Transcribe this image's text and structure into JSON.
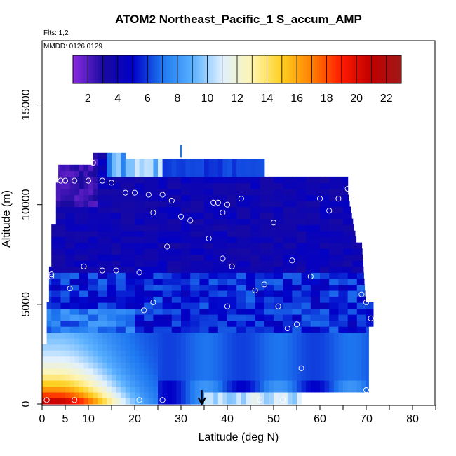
{
  "chart_data": {
    "type": "heatmap",
    "title": "ATOM2 Northeast_Pacific_1 S_accum_AMP",
    "subtitle_flights": "Flts: 1,2",
    "subtitle_dates": "MMDD: 0126,0129",
    "xlabel": "Latitude (deg N)",
    "ylabel": "Altitude (m)",
    "xlim": [
      0,
      85
    ],
    "ylim": [
      0,
      18000
    ],
    "x_ticks": [
      0,
      5,
      10,
      20,
      30,
      40,
      50,
      60,
      70,
      80
    ],
    "y_ticks": [
      0,
      5000,
      10000,
      15000
    ],
    "colorbar": {
      "range": [
        1,
        23
      ],
      "ticks": [
        2,
        4,
        6,
        8,
        10,
        12,
        14,
        16,
        18,
        20,
        22
      ],
      "colors": [
        "#8b2be2",
        "#1a0a9e",
        "#0000c8",
        "#1e78f0",
        "#5ab0ff",
        "#dff0ff",
        "#fff5b0",
        "#ffd020",
        "#ff8000",
        "#ff1a00",
        "#c00000",
        "#a01818"
      ]
    },
    "marker_arrow_latitude": 34.5,
    "observations": [
      {
        "lat": 1,
        "alt": 200
      },
      {
        "lat": 7,
        "alt": 200
      },
      {
        "lat": 21,
        "alt": 200
      },
      {
        "lat": 26,
        "alt": 200
      },
      {
        "lat": 47,
        "alt": 200
      },
      {
        "lat": 52,
        "alt": 200
      },
      {
        "lat": 70,
        "alt": 700
      },
      {
        "lat": 56,
        "alt": 1800
      },
      {
        "lat": 53,
        "alt": 3800
      },
      {
        "lat": 55,
        "alt": 4000
      },
      {
        "lat": 71,
        "alt": 4300
      },
      {
        "lat": 24,
        "alt": 5100
      },
      {
        "lat": 40,
        "alt": 4900
      },
      {
        "lat": 51,
        "alt": 4900
      },
      {
        "lat": 22,
        "alt": 4700
      },
      {
        "lat": 70,
        "alt": 5100
      },
      {
        "lat": 69,
        "alt": 5500
      },
      {
        "lat": 46,
        "alt": 5700
      },
      {
        "lat": 48,
        "alt": 6000
      },
      {
        "lat": 6,
        "alt": 5800
      },
      {
        "lat": 2,
        "alt": 6500
      },
      {
        "lat": 2,
        "alt": 6400
      },
      {
        "lat": 9,
        "alt": 6900
      },
      {
        "lat": 13,
        "alt": 6700
      },
      {
        "lat": 16,
        "alt": 6700
      },
      {
        "lat": 21,
        "alt": 6600
      },
      {
        "lat": 41,
        "alt": 6900
      },
      {
        "lat": 39,
        "alt": 7300
      },
      {
        "lat": 54,
        "alt": 7200
      },
      {
        "lat": 58,
        "alt": 6400
      },
      {
        "lat": 27,
        "alt": 7900
      },
      {
        "lat": 36,
        "alt": 8300
      },
      {
        "lat": 32,
        "alt": 9200
      },
      {
        "lat": 30,
        "alt": 9400
      },
      {
        "lat": 24,
        "alt": 9600
      },
      {
        "lat": 39,
        "alt": 9600
      },
      {
        "lat": 50,
        "alt": 9100
      },
      {
        "lat": 62,
        "alt": 9700
      },
      {
        "lat": 37,
        "alt": 10100
      },
      {
        "lat": 38,
        "alt": 10100
      },
      {
        "lat": 40,
        "alt": 10000
      },
      {
        "lat": 43,
        "alt": 10300
      },
      {
        "lat": 60,
        "alt": 10300
      },
      {
        "lat": 64,
        "alt": 10300
      },
      {
        "lat": 28,
        "alt": 10200
      },
      {
        "lat": 18,
        "alt": 10600
      },
      {
        "lat": 20,
        "alt": 10600
      },
      {
        "lat": 23,
        "alt": 10500
      },
      {
        "lat": 26,
        "alt": 10500
      },
      {
        "lat": 66,
        "alt": 10800
      },
      {
        "lat": 4,
        "alt": 11200
      },
      {
        "lat": 5,
        "alt": 11200
      },
      {
        "lat": 7,
        "alt": 11200
      },
      {
        "lat": 10,
        "alt": 11200
      },
      {
        "lat": 13,
        "alt": 11200
      },
      {
        "lat": 15,
        "alt": 11100
      },
      {
        "lat": 11,
        "alt": 12100
      }
    ]
  }
}
